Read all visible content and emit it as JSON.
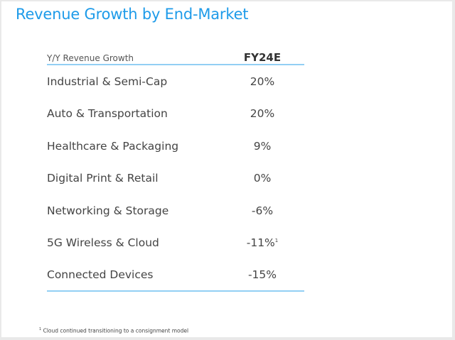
{
  "title": "Revenue Growth by End-Market",
  "table": {
    "header_label": "Y/Y Revenue Growth",
    "column": "FY24E",
    "rows": [
      {
        "label": "Industrial & Semi-Cap",
        "value": "20%",
        "note": ""
      },
      {
        "label": "Auto & Transportation",
        "value": "20%",
        "note": ""
      },
      {
        "label": "Healthcare & Packaging",
        "value": "9%",
        "note": ""
      },
      {
        "label": "Digital Print & Retail",
        "value": "0%",
        "note": ""
      },
      {
        "label": "Networking & Storage",
        "value": "-6%",
        "note": ""
      },
      {
        "label": "5G Wireless & Cloud",
        "value": "-11%",
        "note": "1"
      },
      {
        "label": "Connected Devices",
        "value": "-15%",
        "note": ""
      }
    ]
  },
  "footnote": {
    "mark": "1",
    "text": "Cloud continued transitioning to a consignment model"
  },
  "colors": {
    "title": "#1e9be9",
    "rule": "#92cff4",
    "text": "#444444"
  }
}
